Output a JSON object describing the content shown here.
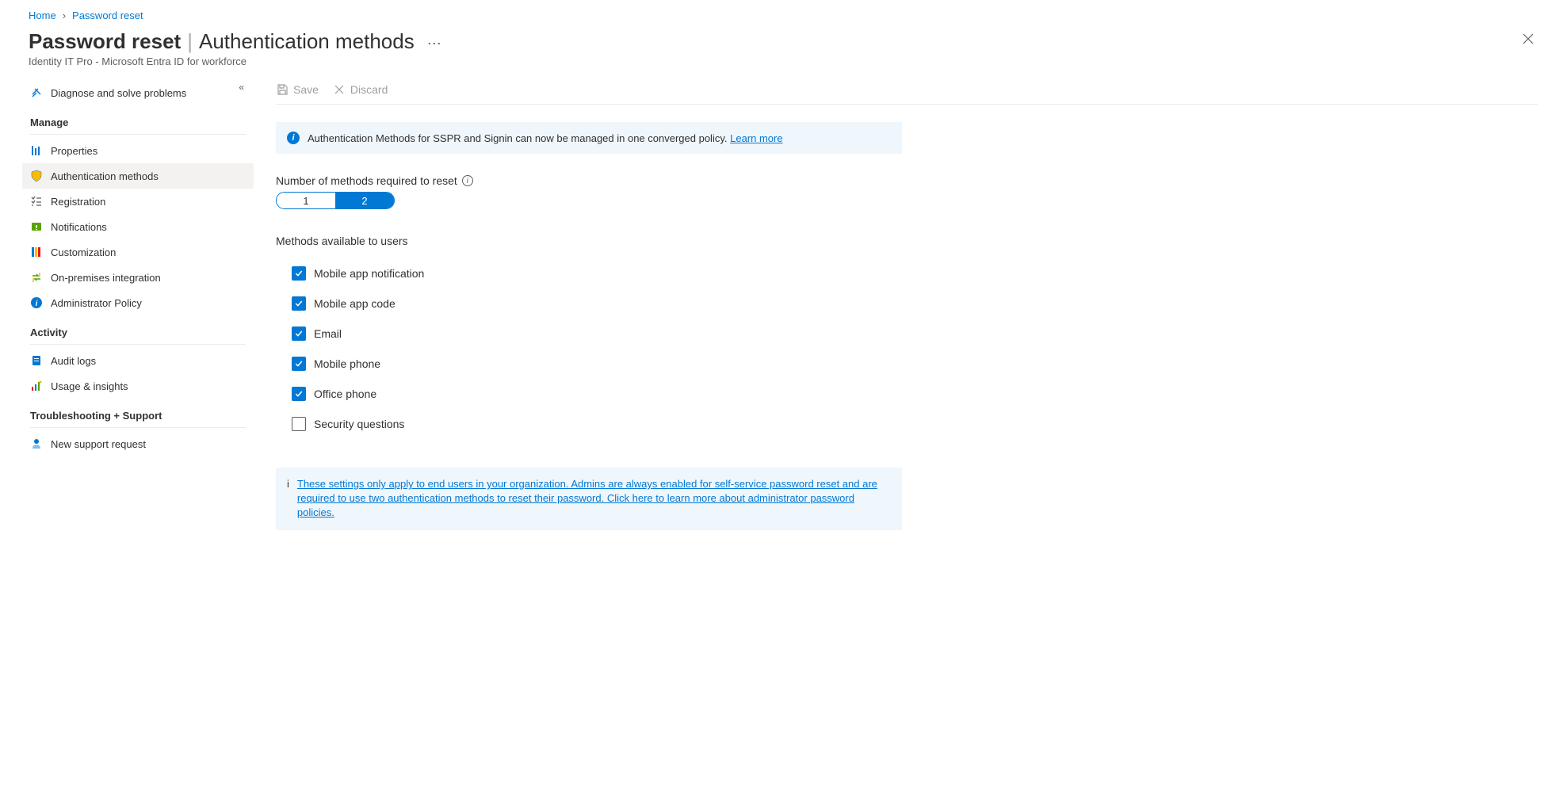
{
  "breadcrumb": {
    "home": "Home",
    "current": "Password reset"
  },
  "header": {
    "title_strong": "Password reset",
    "title_light": "Authentication methods",
    "subtitle": "Identity IT Pro - Microsoft Entra ID for workforce"
  },
  "toolbar": {
    "save": "Save",
    "discard": "Discard"
  },
  "sidebar": {
    "diagnose": "Diagnose and solve problems",
    "section_manage": "Manage",
    "manage_items": {
      "properties": "Properties",
      "auth_methods": "Authentication methods",
      "registration": "Registration",
      "notifications": "Notifications",
      "customization": "Customization",
      "onprem": "On-premises integration",
      "admin_policy": "Administrator Policy"
    },
    "section_activity": "Activity",
    "activity_items": {
      "audit_logs": "Audit logs",
      "usage": "Usage & insights"
    },
    "section_troubleshoot": "Troubleshooting + Support",
    "support_items": {
      "new_request": "New support request"
    }
  },
  "banner1": {
    "text": "Authentication Methods for SSPR and Signin can now be managed in one converged policy.",
    "link": "Learn more"
  },
  "methods_required": {
    "label": "Number of methods required to reset",
    "options": [
      "1",
      "2"
    ],
    "selected": "2"
  },
  "methods_available": {
    "label": "Methods available to users",
    "items": [
      {
        "label": "Mobile app notification",
        "checked": true
      },
      {
        "label": "Mobile app code",
        "checked": true
      },
      {
        "label": "Email",
        "checked": true
      },
      {
        "label": "Mobile phone",
        "checked": true
      },
      {
        "label": "Office phone",
        "checked": true
      },
      {
        "label": "Security questions",
        "checked": false
      }
    ]
  },
  "banner2": {
    "text": "These settings only apply to end users in your organization. Admins are always enabled for self-service password reset and are required to use two authentication methods to reset their password. Click here to learn more about administrator password policies."
  },
  "colors": {
    "accent": "#0078d4",
    "banner_bg": "#eff6fc",
    "text": "#323130",
    "muted": "#605e5c",
    "disabled": "#a19f9d",
    "divider": "#edebe9",
    "active_bg": "#f3f2f1"
  }
}
